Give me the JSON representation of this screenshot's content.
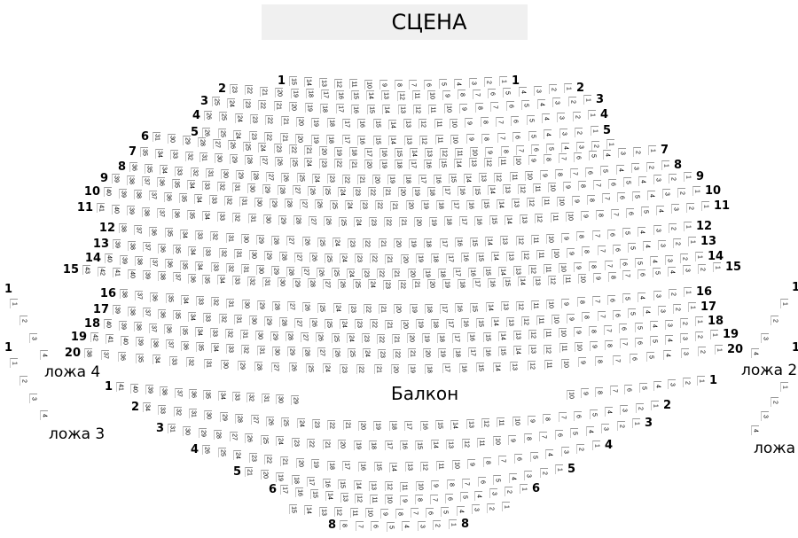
{
  "stage": {
    "label": "СЦЕНА"
  },
  "balcony": {
    "label": "Балкон"
  },
  "parter": {
    "rows": [
      {
        "row": "1",
        "seats": 15,
        "left_label": "1",
        "right_label": "1"
      },
      {
        "row": "2",
        "seats": 23,
        "left_label": "2",
        "right_label": "2"
      },
      {
        "row": "3",
        "seats": 25,
        "left_label": "3",
        "right_label": "3"
      },
      {
        "row": "4",
        "seats": 26,
        "left_label": "4",
        "right_label": "4"
      },
      {
        "row": "5",
        "seats": 26,
        "left_label": "5",
        "right_label": "5"
      },
      {
        "row": "6",
        "seats": 31,
        "left_label": "6",
        "right_label": null
      },
      {
        "row": "7",
        "seats": 35,
        "left_label": "7",
        "right_label": "7"
      },
      {
        "row": "8",
        "seats": 36,
        "left_label": "8",
        "right_label": "8"
      },
      {
        "row": "9",
        "seats": 39,
        "left_label": "9",
        "right_label": "9"
      },
      {
        "row": "10",
        "seats": 40,
        "left_label": "10",
        "right_label": "10"
      },
      {
        "row": "11",
        "seats": 41,
        "left_label": "11",
        "right_label": "11"
      },
      {
        "row": "12",
        "seats": 38,
        "left_label": "12",
        "right_label": "12"
      },
      {
        "row": "13",
        "seats": 39,
        "left_label": "13",
        "right_label": "13"
      },
      {
        "row": "14",
        "seats": 40,
        "left_label": "14",
        "right_label": "14"
      },
      {
        "row": "15",
        "seats": 43,
        "left_label": "15",
        "right_label": "15"
      },
      {
        "row": "16",
        "seats": 38,
        "left_label": "16",
        "right_label": "16"
      },
      {
        "row": "17",
        "seats": 39,
        "left_label": "17",
        "right_label": "17"
      },
      {
        "row": "18",
        "seats": 40,
        "left_label": "18",
        "right_label": "18"
      },
      {
        "row": "19",
        "seats": 42,
        "left_label": "19",
        "right_label": "19"
      },
      {
        "row": "20",
        "seats": 38,
        "left_label": "20",
        "right_label": "20"
      }
    ]
  },
  "balcony_rows": [
    {
      "row": "1",
      "seats": 41,
      "hidden_seats": [
        11,
        28
      ],
      "left_label": "1",
      "right_label": "1"
    },
    {
      "row": "2",
      "seats": 34,
      "left_label": "2",
      "right_label": "2"
    },
    {
      "row": "3",
      "seats": 31,
      "left_label": "3",
      "right_label": "3"
    },
    {
      "row": "4",
      "seats": 26,
      "left_label": "4",
      "right_label": "4"
    },
    {
      "row": "5",
      "seats": 21,
      "left_label": "5",
      "right_label": "5"
    },
    {
      "row": "6",
      "seats": 17,
      "left_label": "6",
      "right_label": "6"
    },
    {
      "row": "7",
      "seats": 15,
      "left_label": null,
      "right_label": null
    },
    {
      "row": "8",
      "seats": 8,
      "left_label": "8",
      "right_label": "8"
    }
  ],
  "boxes": [
    {
      "name": "ложа 4",
      "row_label": "1",
      "seats": 4
    },
    {
      "name": "ложа 3",
      "row_label": "1",
      "seats": 4
    },
    {
      "name": "ложа 2",
      "row_label": "1",
      "seats": 4
    },
    {
      "name": "ложа",
      "row_label": "1",
      "seats": 4
    }
  ],
  "colors": {
    "stage_bg": "#f0f0f0",
    "seat_border": "#9a9a9a",
    "text": "#000000"
  }
}
